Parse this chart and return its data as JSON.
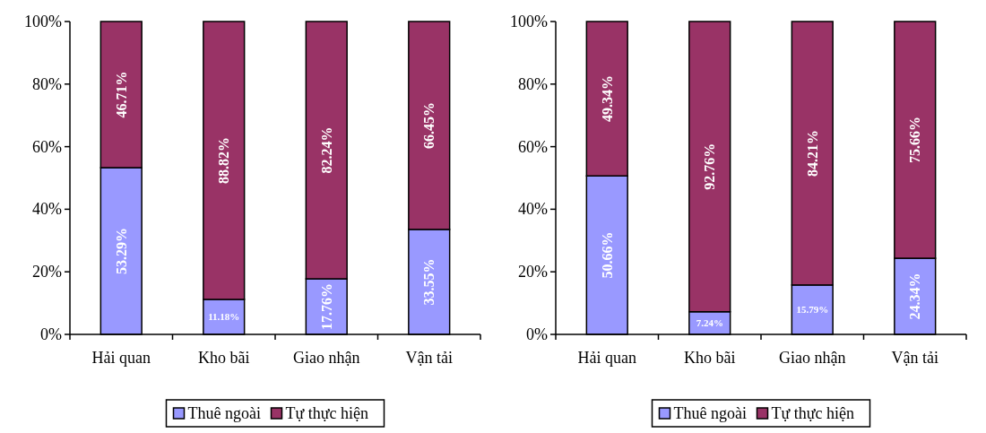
{
  "chart_data": [
    {
      "type": "bar",
      "stacked": true,
      "legend": "bottom",
      "categories": [
        "Hải quan",
        "Kho bãi",
        "Giao nhận",
        "Vận tải"
      ],
      "ylim": [
        0,
        100
      ],
      "yticks": [
        {
          "value": 0,
          "label": "0%"
        },
        {
          "value": 20,
          "label": "20%"
        },
        {
          "value": 40,
          "label": "40%"
        },
        {
          "value": 60,
          "label": "60%"
        },
        {
          "value": 80,
          "label": "80%"
        },
        {
          "value": 100,
          "label": "100%"
        }
      ],
      "series": [
        {
          "name": "Thuê ngoài",
          "color": "#9999ff",
          "values": [
            53.29,
            11.18,
            17.76,
            33.55
          ],
          "value_labels": [
            "53.29%",
            "11.18%",
            "17.76%",
            "33.55%"
          ]
        },
        {
          "name": "Tự thực hiện",
          "color": "#993366",
          "values": [
            46.71,
            88.82,
            82.24,
            66.45
          ],
          "value_labels": [
            "46.71%",
            "88.82%",
            "82.24%",
            "66.45%"
          ]
        }
      ]
    },
    {
      "type": "bar",
      "stacked": true,
      "legend": "bottom",
      "categories": [
        "Hải quan",
        "Kho bãi",
        "Giao nhận",
        "Vận tải"
      ],
      "ylim": [
        0,
        100
      ],
      "yticks": [
        {
          "value": 0,
          "label": "0%"
        },
        {
          "value": 20,
          "label": "20%"
        },
        {
          "value": 40,
          "label": "40%"
        },
        {
          "value": 60,
          "label": "60%"
        },
        {
          "value": 80,
          "label": "80%"
        },
        {
          "value": 100,
          "label": "100%"
        }
      ],
      "series": [
        {
          "name": "Thuê ngoài",
          "color": "#9999ff",
          "values": [
            50.66,
            7.24,
            15.79,
            24.34
          ],
          "value_labels": [
            "50.66%",
            "7.24%",
            "15.79%",
            "24.34%"
          ]
        },
        {
          "name": "Tự thực hiện",
          "color": "#993366",
          "values": [
            49.34,
            92.76,
            84.21,
            75.66
          ],
          "value_labels": [
            "49.34%",
            "92.76%",
            "84.21%",
            "75.66%"
          ]
        }
      ]
    }
  ]
}
